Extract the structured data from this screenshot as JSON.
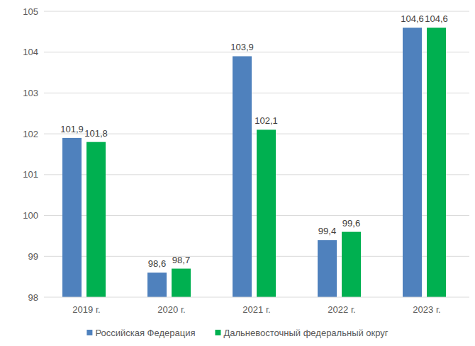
{
  "chart_data": {
    "type": "bar",
    "categories": [
      "2019 г.",
      "2020 г.",
      "2021 г.",
      "2022 г.",
      "2023 г."
    ],
    "series": [
      {
        "name": "Российская Федерация",
        "color": "#4f81bd",
        "values": [
          101.9,
          98.6,
          103.9,
          99.4,
          104.6
        ],
        "value_labels": [
          "101,9",
          "98,6",
          "103,9",
          "99,4",
          "104,6"
        ]
      },
      {
        "name": "Дальневосточный федеральный округ",
        "color": "#00b050",
        "values": [
          101.8,
          98.7,
          102.1,
          99.6,
          104.6
        ],
        "value_labels": [
          "101,8",
          "98,7",
          "102,1",
          "99,6",
          "104,6"
        ]
      }
    ],
    "ylim": [
      98,
      105
    ],
    "yticks": [
      98,
      99,
      100,
      101,
      102,
      103,
      104,
      105
    ],
    "grid": true,
    "legend": "bottom",
    "data_labels": true
  }
}
